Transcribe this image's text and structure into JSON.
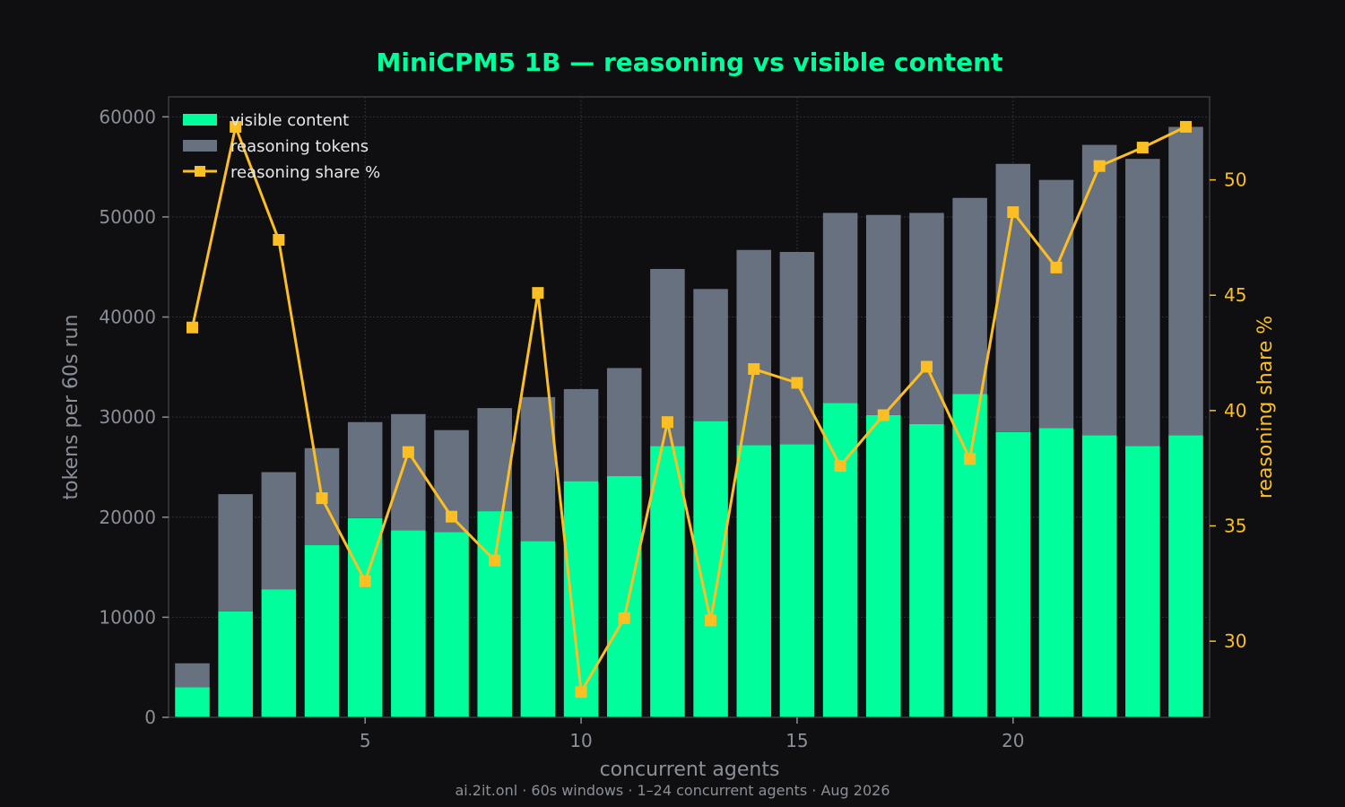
{
  "chart_data": {
    "type": "bar",
    "title": "MiniCPM5 1B — reasoning vs visible content",
    "xlabel": "concurrent agents",
    "ylabel": "tokens per 60s run",
    "y2label": "reasoning share %",
    "footnote": "ai.2it.onl · 60s windows · 1–24 concurrent agents · Aug 2026",
    "x": [
      1,
      2,
      3,
      4,
      5,
      6,
      7,
      8,
      9,
      10,
      11,
      12,
      13,
      14,
      15,
      16,
      17,
      18,
      19,
      20,
      21,
      22,
      23,
      24
    ],
    "xlim": [
      0.45,
      24.55
    ],
    "xticks": [
      5,
      10,
      15,
      20
    ],
    "ylim": [
      0,
      62000
    ],
    "yticks": [
      0,
      10000,
      20000,
      30000,
      40000,
      50000,
      60000
    ],
    "y2lim": [
      26.7,
      53.6
    ],
    "y2ticks": [
      30,
      35,
      40,
      45,
      50
    ],
    "stacked": true,
    "legend_position": "top-left",
    "grid": true,
    "series": [
      {
        "name": "visible content",
        "kind": "bar",
        "axis": "left",
        "color": "#00ff9c",
        "values": [
          3000,
          10600,
          12800,
          17200,
          19900,
          18700,
          18500,
          20600,
          17600,
          23600,
          24100,
          27100,
          29600,
          27200,
          27300,
          31400,
          30200,
          29300,
          32300,
          28500,
          28900,
          28200,
          27100,
          28200
        ]
      },
      {
        "name": "reasoning tokens",
        "kind": "bar",
        "axis": "left",
        "color": "#687180",
        "values": [
          2400,
          11700,
          11700,
          9700,
          9600,
          11600,
          10200,
          10300,
          14400,
          9200,
          10800,
          17700,
          13200,
          19500,
          19200,
          19000,
          20000,
          21100,
          19600,
          26800,
          24800,
          29000,
          28700,
          30800
        ]
      },
      {
        "name": "reasoning share %",
        "kind": "line",
        "axis": "right",
        "color": "#fbbf24",
        "values": [
          43.6,
          52.3,
          47.4,
          36.2,
          32.6,
          38.2,
          35.4,
          33.5,
          45.1,
          27.8,
          31.0,
          39.5,
          30.9,
          41.8,
          41.2,
          37.6,
          39.8,
          41.9,
          37.9,
          48.6,
          46.2,
          50.6,
          51.4,
          52.3
        ]
      }
    ],
    "colors": {
      "background": "#0f0f11",
      "title": "#00ff9c",
      "axis_text": "#8a8f98",
      "right_axis_text": "#fbbf24",
      "legend_text": "#e5e7eb",
      "spine": "#3a3d42",
      "grid": "#2e3136"
    }
  }
}
